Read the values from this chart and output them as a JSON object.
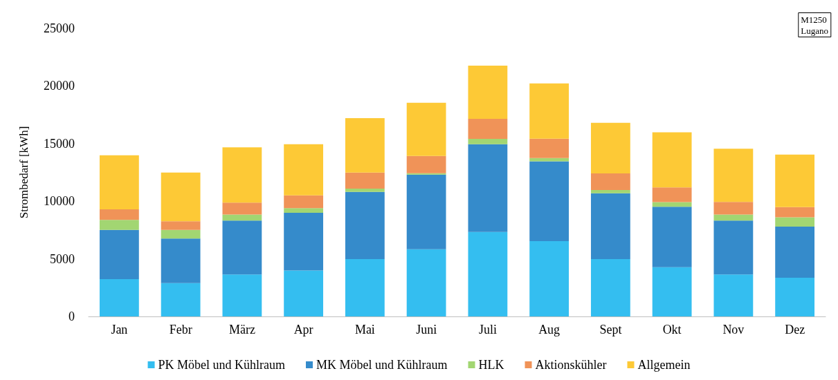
{
  "chart_data": {
    "type": "bar",
    "stacked": true,
    "ylabel": "Strombedarf [kWh]",
    "categories": [
      "Jan",
      "Febr",
      "März",
      "Apr",
      "Mai",
      "Juni",
      "Juli",
      "Aug",
      "Sept",
      "Okt",
      "Nov",
      "Dez"
    ],
    "series": [
      {
        "name": "PK Möbel und Kühlraum",
        "color": "#29bbef",
        "values": [
          3230,
          2890,
          3640,
          3980,
          4970,
          5830,
          7330,
          6530,
          4970,
          4270,
          3640,
          3350
        ]
      },
      {
        "name": "MK Möbel und Kühlraum",
        "color": "#2a85c8",
        "values": [
          4280,
          3870,
          4680,
          5020,
          5830,
          6470,
          7620,
          6930,
          5710,
          5250,
          4680,
          4450
        ]
      },
      {
        "name": "HLK",
        "color": "#9dd46a",
        "values": [
          870,
          750,
          520,
          400,
          290,
          120,
          460,
          290,
          290,
          400,
          520,
          810
        ]
      },
      {
        "name": "Aktionskühler",
        "color": "#ef8d4f",
        "values": [
          920,
          750,
          1040,
          1100,
          1390,
          1500,
          1730,
          1680,
          1440,
          1270,
          1100,
          870
        ]
      },
      {
        "name": "Allgemein",
        "color": "#fdc62b",
        "values": [
          4680,
          4220,
          4790,
          4450,
          4730,
          4620,
          4620,
          4790,
          4390,
          4790,
          4620,
          4560
        ]
      }
    ],
    "ylim": [
      0,
      25000
    ],
    "yticks": [
      0,
      5000,
      10000,
      15000,
      20000,
      25000
    ],
    "grid": false,
    "legend": "bottom",
    "annotations": [
      "M1250",
      "Lugano"
    ]
  }
}
